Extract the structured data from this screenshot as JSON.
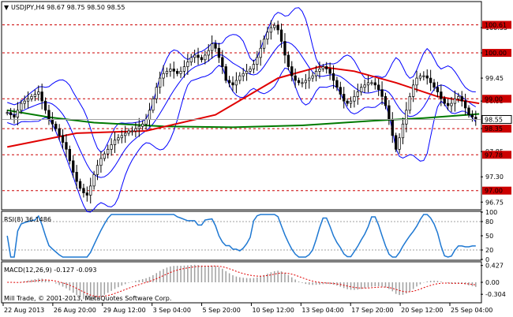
{
  "chart_data": {
    "type": "candlestick",
    "header": {
      "marker": "▼",
      "text": "USDJPY,H4  98.67 98.75 98.50 98.55"
    },
    "price_panel": {
      "ylim": [
        96.6,
        101.1
      ],
      "ticks": [
        96.75,
        97.3,
        97.85,
        98.35,
        98.95,
        99.45,
        100.0,
        100.55
      ],
      "tick_labels": [
        "96.75",
        "97.30",
        "97.85",
        "98.35",
        "98.95",
        "99.45",
        "100.00",
        "100.55"
      ],
      "levels": [
        {
          "value": 100.61,
          "label": "100.61",
          "color": "#cc0000"
        },
        {
          "value": 100.0,
          "label": "100.00",
          "color": "#cc0000"
        },
        {
          "value": 99.0,
          "label": "99.00",
          "color": "#cc0000"
        },
        {
          "value": 98.35,
          "label": "98.35",
          "color": "#cc0000"
        },
        {
          "value": 97.78,
          "label": "97.78",
          "color": "#cc0000"
        },
        {
          "value": 97.0,
          "label": "97.00",
          "color": "#cc0000"
        }
      ],
      "current": {
        "value": 98.55,
        "label": "98.55"
      },
      "closes": [
        98.7,
        98.65,
        98.6,
        98.75,
        98.9,
        98.95,
        99.0,
        99.05,
        99.1,
        99.15,
        98.95,
        98.75,
        98.55,
        98.45,
        98.35,
        98.2,
        98.05,
        97.9,
        97.65,
        97.4,
        97.2,
        97.05,
        96.95,
        96.9,
        97.1,
        97.35,
        97.55,
        97.7,
        97.8,
        97.9,
        98.0,
        98.1,
        98.15,
        98.2,
        98.25,
        98.3,
        98.3,
        98.35,
        98.4,
        98.45,
        98.55,
        98.75,
        99.0,
        99.25,
        99.45,
        99.55,
        99.6,
        99.65,
        99.6,
        99.55,
        99.6,
        99.7,
        99.8,
        99.9,
        99.95,
        99.9,
        99.85,
        99.95,
        100.05,
        100.2,
        100.1,
        99.9,
        99.7,
        99.4,
        99.35,
        99.3,
        99.4,
        99.5,
        99.55,
        99.6,
        99.65,
        99.75,
        99.9,
        100.1,
        100.3,
        100.45,
        100.55,
        100.6,
        100.5,
        100.25,
        99.95,
        99.7,
        99.5,
        99.4,
        99.35,
        99.35,
        99.4,
        99.45,
        99.5,
        99.6,
        99.65,
        99.7,
        99.65,
        99.55,
        99.4,
        99.25,
        99.1,
        98.95,
        98.9,
        98.95,
        99.05,
        99.15,
        99.25,
        99.3,
        99.35,
        99.35,
        99.3,
        99.2,
        99.05,
        98.85,
        98.55,
        98.2,
        97.9,
        98.15,
        98.45,
        98.75,
        99.05,
        99.3,
        99.45,
        99.5,
        99.5,
        99.45,
        99.35,
        99.25,
        99.15,
        99.0,
        98.9,
        98.85,
        98.9,
        99.0,
        99.05,
        98.95,
        98.8,
        98.65,
        98.6,
        98.55
      ],
      "sma_red": {
        "color": "#e00000",
        "points": [
          [
            0,
            97.95
          ],
          [
            20,
            98.25
          ],
          [
            40,
            98.3
          ],
          [
            60,
            98.65
          ],
          [
            78,
            99.45
          ],
          [
            90,
            99.7
          ],
          [
            100,
            99.6
          ],
          [
            112,
            99.35
          ],
          [
            124,
            99.05
          ],
          [
            132,
            98.95
          ],
          [
            136,
            98.9
          ]
        ]
      },
      "sma_green": {
        "color": "#007a00",
        "points": [
          [
            0,
            98.75
          ],
          [
            12,
            98.6
          ],
          [
            25,
            98.48
          ],
          [
            45,
            98.4
          ],
          [
            65,
            98.38
          ],
          [
            85,
            98.42
          ],
          [
            105,
            98.52
          ],
          [
            120,
            98.58
          ],
          [
            136,
            98.67
          ]
        ]
      },
      "bollinger": {
        "color": "#0000ff"
      }
    },
    "rsi_panel": {
      "label": "RSI(8) 36.1486",
      "ylim": [
        0,
        100
      ],
      "ticks": [
        0,
        20,
        50,
        80,
        100
      ],
      "tick_labels": [
        "0",
        "20",
        "50",
        "80",
        "100"
      ],
      "levels": [
        20,
        80
      ],
      "line_color": "#1e78d2"
    },
    "macd_panel": {
      "label": "MACD(12,26,9) -0.127 -0.093",
      "ylim": [
        -0.5,
        0.5
      ],
      "ticks": [
        0.427,
        0.0,
        -0.304
      ],
      "tick_labels": [
        "0.427",
        "0.00",
        "-0.304"
      ],
      "signal_color": "#e00000",
      "histogram_color": "#a0a0a0"
    },
    "x_tick_labels": [
      "22 Aug 2013",
      "26 Aug 20:00",
      "29 Aug 12:00",
      "3 Sep 04:00",
      "5 Sep 20:00",
      "10 Sep 12:00",
      "13 Sep 04:00",
      "17 Sep 20:00",
      "20 Sep 12:00",
      "25 Sep 04:00"
    ],
    "copyright": "Mill Trade, © 2001-2013, MetaQuotes Software Corp."
  }
}
